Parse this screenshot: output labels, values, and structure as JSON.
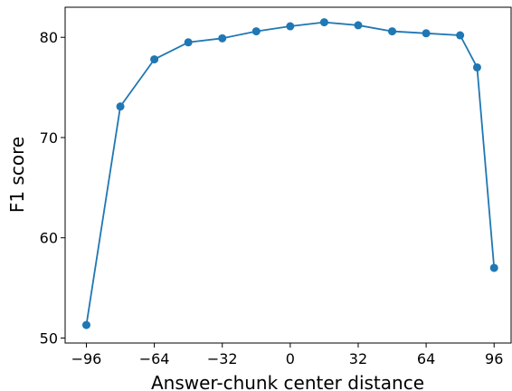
{
  "chart_data": {
    "type": "line",
    "xlabel": "Answer-chunk center distance",
    "ylabel": "F1 score",
    "xlim": [
      -106,
      104
    ],
    "ylim": [
      49.5,
      83.0
    ],
    "grid": false,
    "x_ticks": [
      -96,
      -64,
      -32,
      0,
      32,
      64,
      96
    ],
    "x_tick_labels": [
      "−96",
      "−64",
      "−32",
      "0",
      "32",
      "64",
      "96"
    ],
    "y_ticks": [
      50,
      60,
      70,
      80
    ],
    "y_tick_labels": [
      "50",
      "60",
      "70",
      "80"
    ],
    "series": [
      {
        "color": "#1f77b4",
        "marker": "circle",
        "x": [
          -96,
          -80,
          -64,
          -48,
          -32,
          -16,
          0,
          16,
          32,
          48,
          64,
          80,
          88,
          96
        ],
        "y": [
          51.3,
          73.1,
          77.8,
          79.5,
          79.9,
          80.6,
          81.1,
          81.5,
          81.2,
          80.6,
          80.4,
          80.2,
          77.0,
          57.0
        ]
      }
    ]
  }
}
